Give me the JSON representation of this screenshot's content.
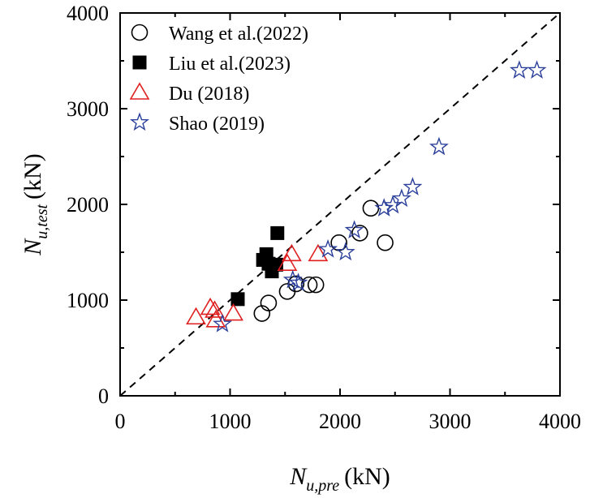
{
  "chart_data": {
    "type": "scatter",
    "title": "",
    "xlabel": {
      "main": "N",
      "sub": "u,pre",
      "unit": "(kN)"
    },
    "ylabel": {
      "main": "N",
      "sub": "u,test",
      "unit": "(kN)"
    },
    "xlim": [
      0,
      4000
    ],
    "ylim": [
      0,
      4000
    ],
    "x_ticks": [
      0,
      1000,
      2000,
      3000,
      4000
    ],
    "y_ticks": [
      0,
      1000,
      2000,
      3000,
      4000
    ],
    "x_tick_labels": [
      "0",
      "1000",
      "2000",
      "3000",
      "4000"
    ],
    "y_tick_labels": [
      "0",
      "1000",
      "2000",
      "3000",
      "4000"
    ],
    "reference_line": {
      "style": "dashed",
      "from": [
        0,
        0
      ],
      "to": [
        4000,
        4000
      ]
    },
    "legend_position": "top-left",
    "series": [
      {
        "name": "Wang et al.(2022)",
        "marker": "circle-open",
        "color": "#000000",
        "points": [
          [
            1290,
            860
          ],
          [
            1350,
            970
          ],
          [
            1520,
            1090
          ],
          [
            1600,
            1170
          ],
          [
            1720,
            1160
          ],
          [
            1780,
            1160
          ],
          [
            1990,
            1600
          ],
          [
            2180,
            1700
          ],
          [
            2280,
            1960
          ],
          [
            2410,
            1600
          ]
        ]
      },
      {
        "name": "Liu et al.(2023)",
        "marker": "square-filled",
        "color": "#000000",
        "points": [
          [
            1070,
            1010
          ],
          [
            1300,
            1420
          ],
          [
            1330,
            1480
          ],
          [
            1350,
            1380
          ],
          [
            1380,
            1300
          ],
          [
            1420,
            1370
          ],
          [
            1430,
            1700
          ]
        ]
      },
      {
        "name": "Du (2018)",
        "marker": "triangle-open",
        "color": "#e02020",
        "points": [
          [
            690,
            820
          ],
          [
            820,
            920
          ],
          [
            860,
            890
          ],
          [
            870,
            790
          ],
          [
            1030,
            860
          ],
          [
            1520,
            1380
          ],
          [
            1560,
            1480
          ],
          [
            1800,
            1480
          ]
        ]
      },
      {
        "name": "Shao (2019)",
        "marker": "star-open",
        "color": "#2a3f9a",
        "points": [
          [
            930,
            750
          ],
          [
            1570,
            1210
          ],
          [
            1620,
            1180
          ],
          [
            1890,
            1530
          ],
          [
            2050,
            1500
          ],
          [
            2130,
            1730
          ],
          [
            2400,
            1960
          ],
          [
            2480,
            1990
          ],
          [
            2560,
            2060
          ],
          [
            2660,
            2180
          ],
          [
            2900,
            2600
          ],
          [
            3630,
            3400
          ],
          [
            3790,
            3400
          ]
        ]
      }
    ]
  }
}
